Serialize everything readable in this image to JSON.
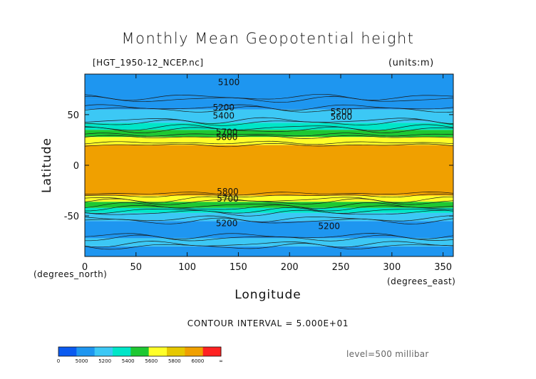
{
  "title": "Monthly Mean Geopotential height",
  "file_label": "[HGT_1950-12_NCEP.nc]",
  "units_label": "(units:m)",
  "x_unit_label": "(degrees_north)",
  "y_unit_label": "(degrees_east)",
  "contour_interval": "CONTOUR INTERVAL = 5.000E+01",
  "level_label": "level=500 millibar",
  "colors": {
    "c0": "#0a5af0",
    "c5000": "#1e96f0",
    "c5200": "#3cc8f5",
    "c5400": "#00e6c8",
    "c5600": "#1ec832",
    "c5800": "#ffff28",
    "c6000": "#e6c800",
    "c6200": "#f0a000",
    "cInf": "#ff2222"
  },
  "chart_data": {
    "type": "heatmap",
    "title": "Monthly Mean Geopotential height",
    "xlabel": "Longitude",
    "ylabel": "Latitude",
    "xlim": [
      0,
      360
    ],
    "ylim": [
      -90,
      90
    ],
    "x_ticks": [
      0,
      50,
      100,
      150,
      200,
      250,
      300,
      350
    ],
    "y_ticks": [
      -50,
      0,
      50
    ],
    "bands": [
      {
        "lat_range": [
          -90,
          -80
        ],
        "value": 5000
      },
      {
        "lat_range": [
          -80,
          -72
        ],
        "value": 5200
      },
      {
        "lat_range": [
          -72,
          -55
        ],
        "value": 5100
      },
      {
        "lat_range": [
          -55,
          -47
        ],
        "value": 5300
      },
      {
        "lat_range": [
          -47,
          -42
        ],
        "value": 5500
      },
      {
        "lat_range": [
          -42,
          -36
        ],
        "value": 5700
      },
      {
        "lat_range": [
          -36,
          -30
        ],
        "value": 5800
      },
      {
        "lat_range": [
          -30,
          20
        ],
        "value": 5850
      },
      {
        "lat_range": [
          20,
          28
        ],
        "value": 5800
      },
      {
        "lat_range": [
          28,
          35
        ],
        "value": 5650
      },
      {
        "lat_range": [
          35,
          42
        ],
        "value": 5500
      },
      {
        "lat_range": [
          42,
          55
        ],
        "value": 5300
      },
      {
        "lat_range": [
          55,
          65
        ],
        "value": 5150
      },
      {
        "lat_range": [
          65,
          90
        ],
        "value": 5000
      }
    ],
    "contour_labels": [
      {
        "text": "5100",
        "lon": 130,
        "lat": 79
      },
      {
        "text": "5200",
        "lon": 125,
        "lat": 54
      },
      {
        "text": "5400",
        "lon": 125,
        "lat": 46
      },
      {
        "text": "5700",
        "lon": 128,
        "lat": 30
      },
      {
        "text": "5800",
        "lon": 128,
        "lat": 25
      },
      {
        "text": "5500",
        "lon": 240,
        "lat": 50
      },
      {
        "text": "5600",
        "lon": 240,
        "lat": 45
      },
      {
        "text": "5800",
        "lon": 129,
        "lat": -29
      },
      {
        "text": "5700",
        "lon": 129,
        "lat": -36
      },
      {
        "text": "5200",
        "lon": 128,
        "lat": -60
      },
      {
        "text": "5200",
        "lon": 228,
        "lat": -63
      }
    ],
    "colorbar": {
      "labels": [
        "0",
        "5000",
        "5200",
        "5400",
        "5600",
        "5800",
        "6000",
        "∞"
      ]
    }
  }
}
